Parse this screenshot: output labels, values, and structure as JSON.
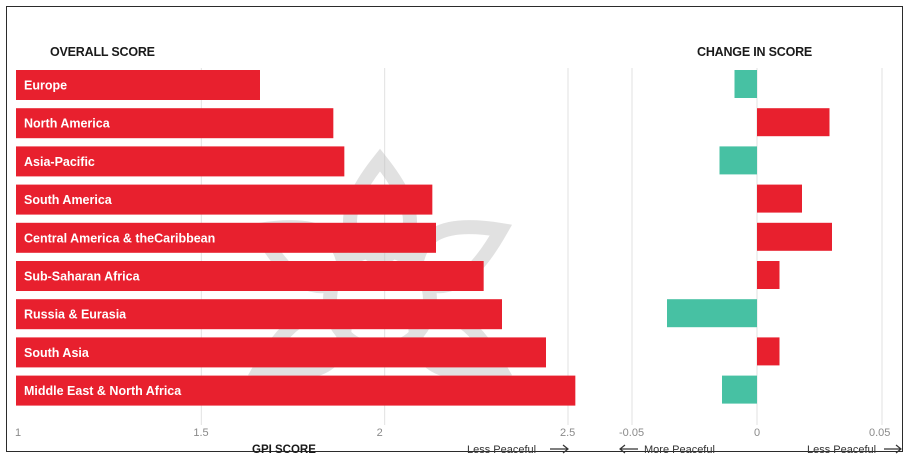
{
  "colors": {
    "bar_red": "#e8202e",
    "bar_teal": "#47c1a3",
    "grid": "#e2e2e2",
    "watermark": "#c9c9c9"
  },
  "chart_data": [
    {
      "type": "bar",
      "orientation": "horizontal",
      "title": "OVERALL SCORE",
      "xlabel": "GPI SCORE",
      "direction_label": "Less Peaceful",
      "categories": [
        "Europe",
        "North America",
        "Asia-Pacific",
        "South America",
        "Central America & theCaribbean",
        "Sub-Saharan Africa",
        "Russia & Eurasia",
        "South Asia",
        "Middle East & North Africa"
      ],
      "values": [
        1.66,
        1.86,
        1.89,
        2.13,
        2.14,
        2.27,
        2.32,
        2.44,
        2.52
      ],
      "xlim": [
        1,
        2.5
      ],
      "ticks": [
        "1",
        "1.5",
        "2",
        "2.5"
      ],
      "tick_values": [
        1,
        1.5,
        2,
        2.5
      ],
      "grid": true
    },
    {
      "type": "bar",
      "orientation": "horizontal",
      "title": "CHANGE IN SCORE",
      "left_direction_label": "More Peaceful",
      "right_direction_label": "Less Peaceful",
      "categories": [
        "Europe",
        "North America",
        "Asia-Pacific",
        "South America",
        "Central America & theCaribbean",
        "Sub-Saharan Africa",
        "Russia & Eurasia",
        "South Asia",
        "Middle East & North Africa"
      ],
      "values": [
        -0.009,
        0.029,
        -0.015,
        0.018,
        0.03,
        0.009,
        -0.036,
        0.009,
        -0.014
      ],
      "xlim": [
        -0.05,
        0.05
      ],
      "ticks": [
        "-0.05",
        "0",
        "0.05"
      ],
      "tick_values": [
        -0.05,
        0,
        0.05
      ],
      "grid": true
    }
  ]
}
